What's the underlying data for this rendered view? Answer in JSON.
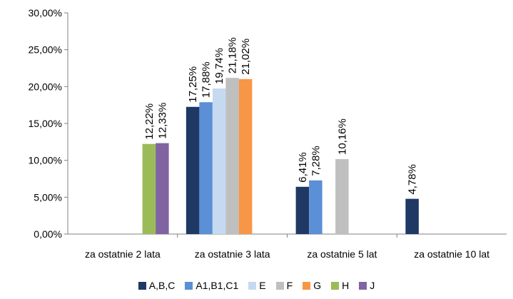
{
  "chart_data": {
    "type": "bar",
    "categories": [
      "za ostatnie 2 lata",
      "za ostatnie 3 lata",
      "za ostatnie 5 lat",
      "za ostatnie 10 lat"
    ],
    "series": [
      {
        "name": "A,B,C",
        "color": "#1F3864",
        "values": [
          null,
          17.25,
          6.41,
          4.78
        ],
        "labels": [
          "",
          "17,25%",
          "6,41%",
          "4,78%"
        ]
      },
      {
        "name": "A1,B1,C1",
        "color": "#5B8FD6",
        "values": [
          null,
          17.88,
          7.28,
          null
        ],
        "labels": [
          "",
          "17,88%",
          "7,28%",
          ""
        ]
      },
      {
        "name": "E",
        "color": "#C5D9F1",
        "values": [
          null,
          19.74,
          null,
          null
        ],
        "labels": [
          "",
          "19,74%",
          "",
          ""
        ]
      },
      {
        "name": "F",
        "color": "#BFBFBF",
        "values": [
          null,
          21.18,
          10.16,
          null
        ],
        "labels": [
          "",
          "21,18%",
          "10,16%",
          ""
        ]
      },
      {
        "name": "G",
        "color": "#F79646",
        "values": [
          null,
          21.02,
          null,
          null
        ],
        "labels": [
          "",
          "21,02%",
          "",
          ""
        ]
      },
      {
        "name": "H",
        "color": "#9BBB59",
        "values": [
          12.22,
          null,
          null,
          null
        ],
        "labels": [
          "12,22%",
          "",
          "",
          ""
        ]
      },
      {
        "name": "J",
        "color": "#8064A2",
        "values": [
          12.33,
          null,
          null,
          null
        ],
        "labels": [
          "12,33%",
          "",
          "",
          ""
        ]
      }
    ],
    "y_ticks": [
      "0,00%",
      "5,00%",
      "10,00%",
      "15,00%",
      "20,00%",
      "25,00%",
      "30,00%"
    ],
    "ylim": [
      0,
      30
    ],
    "title": "",
    "xlabel": "",
    "ylabel": "",
    "grid": false,
    "legend_position": "bottom"
  }
}
